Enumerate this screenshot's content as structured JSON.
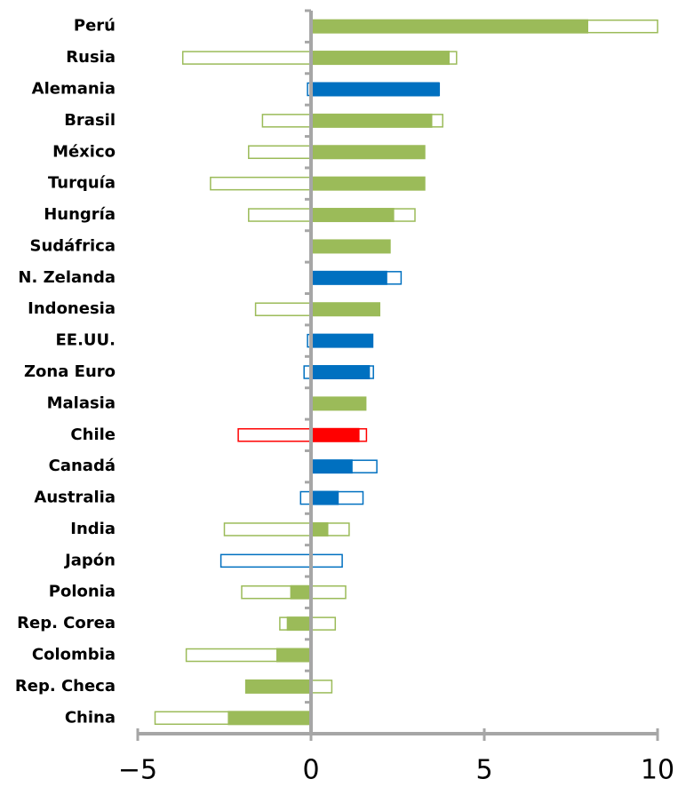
{
  "chart_data": {
    "type": "bar",
    "categories": [
      "Perú",
      "Rusia",
      "Alemania",
      "Brasil",
      "México",
      "Turquía",
      "Hungría",
      "Sudáfrica",
      "N. Zelanda",
      "Indonesia",
      "EE.UU.",
      "Zona Euro",
      "Malasia",
      "Chile",
      "Canadá",
      "Australia",
      "India",
      "Japón",
      "Polonia",
      "Rep. Corea",
      "Colombia",
      "Rep. Checa",
      "China"
    ],
    "values": [
      8.0,
      4.0,
      3.7,
      3.5,
      3.3,
      3.3,
      2.4,
      2.3,
      2.2,
      2.0,
      1.8,
      1.7,
      1.6,
      1.4,
      1.2,
      0.8,
      0.5,
      0,
      -0.6,
      -0.7,
      -1.0,
      -1.9,
      -2.4
    ],
    "range_low": [
      0,
      -3.7,
      -0.1,
      -1.4,
      -1.8,
      -2.9,
      -1.8,
      null,
      0,
      -1.6,
      -0.1,
      -0.2,
      null,
      -2.1,
      0,
      -0.3,
      -2.5,
      -2.6,
      -2.0,
      -0.9,
      -3.6,
      0,
      -4.5
    ],
    "range_high": [
      10,
      4.2,
      3.7,
      3.8,
      0,
      0,
      3.0,
      null,
      2.6,
      0,
      0,
      1.8,
      null,
      1.6,
      1.9,
      1.5,
      1.1,
      0.9,
      1.0,
      0.7,
      0,
      0.6,
      0
    ],
    "colors": [
      "#9bbb59",
      "#9bbb59",
      "#0070c0",
      "#9bbb59",
      "#9bbb59",
      "#9bbb59",
      "#9bbb59",
      "#9bbb59",
      "#0070c0",
      "#9bbb59",
      "#0070c0",
      "#0070c0",
      "#9bbb59",
      "#ff0000",
      "#0070c0",
      "#0070c0",
      "#9bbb59",
      "#0070c0",
      "#9bbb59",
      "#9bbb59",
      "#9bbb59",
      "#9bbb59",
      "#9bbb59"
    ],
    "xlim": [
      -5,
      10
    ],
    "xticks": [
      {
        "value": -5,
        "label": "−5"
      },
      0,
      5,
      10
    ]
  }
}
